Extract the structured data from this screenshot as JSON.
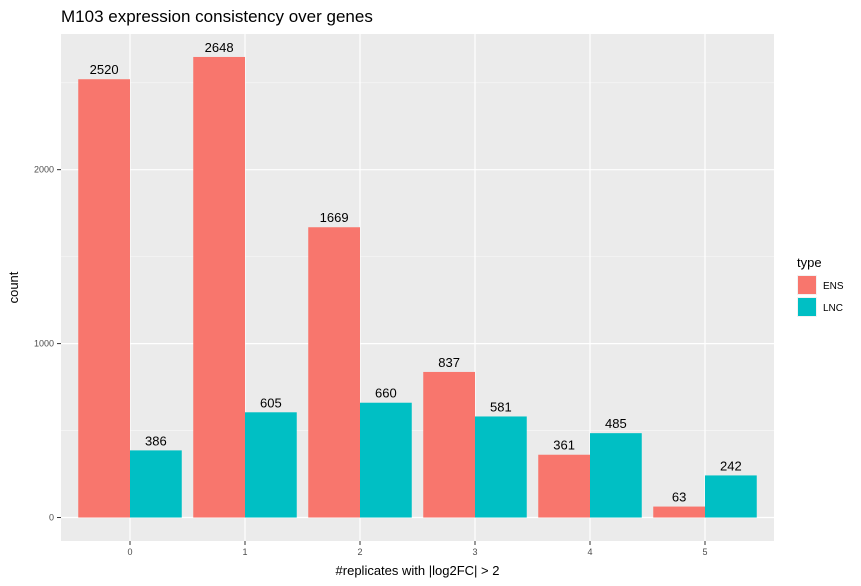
{
  "chart_data": {
    "type": "bar",
    "title": "M103 expression consistency over genes",
    "xlabel": "#replicates with |log2FC| > 2",
    "ylabel": "count",
    "categories": [
      "0",
      "1",
      "2",
      "3",
      "4",
      "5"
    ],
    "series": [
      {
        "name": "ENS",
        "color": "#F8766D",
        "values": [
          2520,
          2648,
          1669,
          837,
          361,
          63
        ]
      },
      {
        "name": "LNC",
        "color": "#00BFC4",
        "values": [
          386,
          605,
          660,
          581,
          485,
          242
        ]
      }
    ],
    "ylim": [
      -135,
      2780
    ],
    "yticks": [
      0,
      1000,
      2000
    ],
    "legend": {
      "title": "type",
      "position": "right"
    },
    "grid": true,
    "panel_background": "#EBEBEB"
  }
}
